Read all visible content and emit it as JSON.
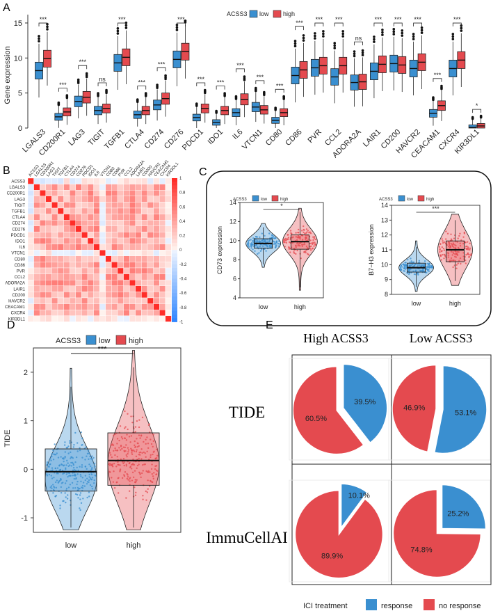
{
  "chart_data": [
    {
      "panel": "A",
      "type": "box",
      "ylabel": "Gene expression",
      "legend_title": "ACSS3",
      "legend": [
        "low",
        "high"
      ],
      "ylim": [
        0,
        15
      ],
      "yticks": [
        0,
        5,
        10,
        15
      ],
      "categories": [
        "LGALS3",
        "CD200R1",
        "LAG3",
        "TIGIT",
        "TGFB1",
        "CTLA4",
        "CD274",
        "CD276",
        "PDCD1",
        "IDO1",
        "IL6",
        "VTCN1",
        "CD80",
        "CD86",
        "PVR",
        "CCL2",
        "ADORA2A",
        "LAIR1",
        "CD200",
        "HAVCR2",
        "CEACAM1",
        "CXCR4",
        "KIR3DL1"
      ],
      "significance": [
        "***",
        "***",
        "***",
        "ns",
        "***",
        "***",
        "***",
        "***",
        "***",
        "***",
        "***",
        "***",
        "***",
        "***",
        "***",
        "***",
        "ns",
        "***",
        "***",
        "***",
        "***",
        "***",
        "*"
      ],
      "series": [
        {
          "name": "low",
          "medians": [
            8.2,
            1.6,
            3.8,
            2.5,
            9.3,
            1.9,
            3.3,
            9.8,
            1.5,
            0.8,
            2.2,
            3.0,
            1.1,
            7.5,
            8.6,
            7.3,
            6.5,
            8.1,
            9.2,
            8.5,
            2.1,
            8.5,
            0.1
          ]
        },
        {
          "name": "high",
          "medians": [
            9.9,
            2.3,
            4.4,
            2.8,
            10.1,
            2.5,
            4.2,
            10.9,
            2.8,
            2.5,
            4.1,
            2.6,
            2.2,
            8.3,
            8.9,
            8.9,
            6.6,
            9.1,
            9.0,
            9.4,
            3.2,
            9.7,
            0.3
          ]
        }
      ]
    },
    {
      "panel": "B",
      "type": "heatmap",
      "genes": [
        "ACSS3",
        "LGALS3",
        "CD200R1",
        "LAG3",
        "TIGIT",
        "TGFB1",
        "CTLA4",
        "CD274",
        "CD276",
        "PDCD1",
        "IDO1",
        "IL6",
        "VTCN1",
        "CD80",
        "CD86",
        "PVR",
        "CCL2",
        "ADORA2A",
        "LAIR1",
        "CD200",
        "HAVCR2",
        "CEACAM1",
        "CXCR4",
        "KIR3DL1"
      ],
      "colorbar_ticks": [
        "1",
        "0.8",
        "0.6",
        "0.4",
        "0.2",
        "0",
        "-0.2",
        "-0.4",
        "-0.6",
        "-0.8",
        "-1"
      ]
    },
    {
      "panel": "C",
      "type": "violin-box",
      "plots": [
        {
          "ylabel": "CD73 expression",
          "ylim": [
            4,
            14
          ],
          "yticks": [
            4,
            6,
            8,
            10,
            12,
            14
          ],
          "categories": [
            "low",
            "high"
          ],
          "medians": [
            9.7,
            9.9
          ],
          "q1": [
            9.2,
            9.1
          ],
          "q3": [
            10.2,
            10.6
          ],
          "significance": "*"
        },
        {
          "ylabel": "B7−H3 expression",
          "ylim": [
            8,
            14
          ],
          "yticks": [
            8,
            9,
            10,
            11,
            12,
            13,
            14
          ],
          "categories": [
            "low",
            "high"
          ],
          "medians": [
            9.8,
            11.0
          ],
          "q1": [
            9.5,
            10.2
          ],
          "q3": [
            10.1,
            11.6
          ],
          "significance": "***"
        }
      ],
      "legend_title": "ACSS3",
      "legend": [
        "low",
        "high"
      ]
    },
    {
      "panel": "D",
      "type": "violin-box",
      "ylabel": "TIDE",
      "ylim": [
        -1.3,
        2.5
      ],
      "yticks": [
        -1,
        0,
        1,
        2
      ],
      "categories": [
        "low",
        "high"
      ],
      "medians": [
        -0.05,
        0.18
      ],
      "q1": [
        -0.45,
        -0.33
      ],
      "q3": [
        0.42,
        0.75
      ],
      "significance": "***",
      "legend_title": "ACSS3",
      "legend": [
        "low",
        "high"
      ]
    },
    {
      "panel": "E",
      "type": "pie",
      "columns": [
        "High ACSS3",
        "Low ACSS3"
      ],
      "rows": [
        "TIDE",
        "ImmuCellAI"
      ],
      "pies": [
        {
          "row": "TIDE",
          "column": "High ACSS3",
          "response": 39.5,
          "no_response": 60.5,
          "response_label": "39.5%",
          "no_response_label": "60.5%"
        },
        {
          "row": "TIDE",
          "column": "Low ACSS3",
          "response": 53.1,
          "no_response": 46.9,
          "response_label": "53.1%",
          "no_response_label": "46.9%"
        },
        {
          "row": "ImmuCellAI",
          "column": "High ACSS3",
          "response": 10.1,
          "no_response": 89.9,
          "response_label": "10.1%",
          "no_response_label": "89.9%"
        },
        {
          "row": "ImmuCellAI",
          "column": "Low ACSS3",
          "response": 25.2,
          "no_response": 74.8,
          "response_label": "25.2%",
          "no_response_label": "74.8%"
        }
      ],
      "legend_title": "ICI treatment",
      "legend": [
        "response",
        "no response"
      ]
    }
  ],
  "labels": {
    "panel_a": "A",
    "panel_b": "B",
    "panel_c": "C",
    "panel_d": "D",
    "panel_e": "E"
  },
  "colors": {
    "low": "#3a8fd0",
    "high": "#e44a4f",
    "response": "#3a8fd0",
    "no_response": "#e44a4f"
  }
}
